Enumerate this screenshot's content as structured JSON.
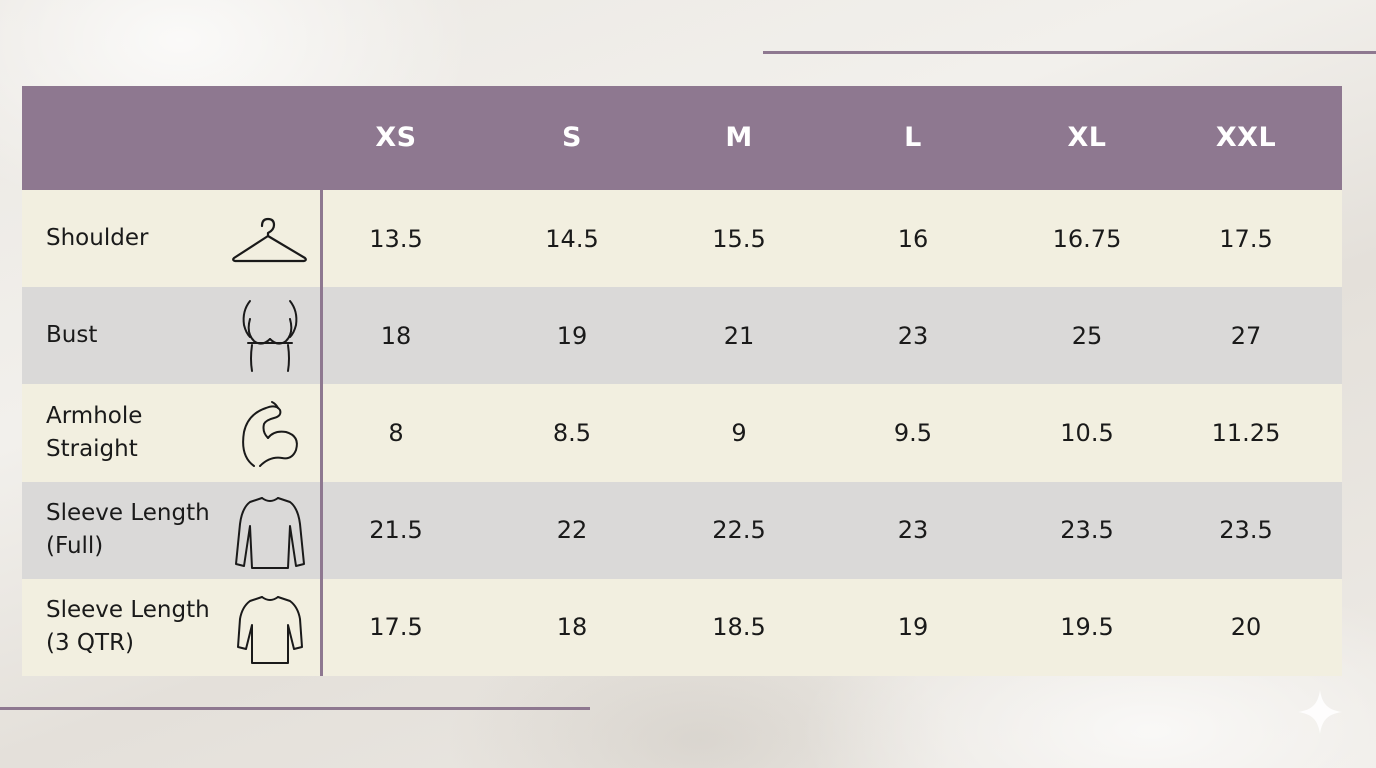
{
  "sizes": [
    "XS",
    "S",
    "M",
    "L",
    "XL",
    "XXL"
  ],
  "rows": [
    {
      "label_lines": [
        "Shoulder",
        ""
      ],
      "icon": "hanger-icon",
      "values": [
        "13.5",
        "14.5",
        "15.5",
        "16",
        "16.75",
        "17.5"
      ]
    },
    {
      "label_lines": [
        "Bust",
        ""
      ],
      "icon": "bust-icon",
      "values": [
        "18",
        "19",
        "21",
        "23",
        "25",
        "27"
      ]
    },
    {
      "label_lines": [
        "Armhole",
        "Straight"
      ],
      "icon": "flexed-arm-icon",
      "values": [
        "8",
        "8.5",
        "9",
        "9.5",
        "10.5",
        "11.25"
      ]
    },
    {
      "label_lines": [
        "Sleeve Length",
        "(Full)"
      ],
      "icon": "long-sleeve-shirt-icon",
      "values": [
        "21.5",
        "22",
        "22.5",
        "23",
        "23.5",
        "23.5"
      ]
    },
    {
      "label_lines": [
        "Sleeve Length",
        "(3 QTR)"
      ],
      "icon": "three-quarter-sleeve-shirt-icon",
      "values": [
        "17.5",
        "18",
        "18.5",
        "19",
        "19.5",
        "20"
      ]
    }
  ],
  "colors": {
    "header": "#8e7890",
    "row_cream": "#f2efe0",
    "row_grey": "#dad9d8",
    "accent_line": "#8e7890",
    "header_text": "#ffffff",
    "body_text": "#1a1a1a"
  }
}
